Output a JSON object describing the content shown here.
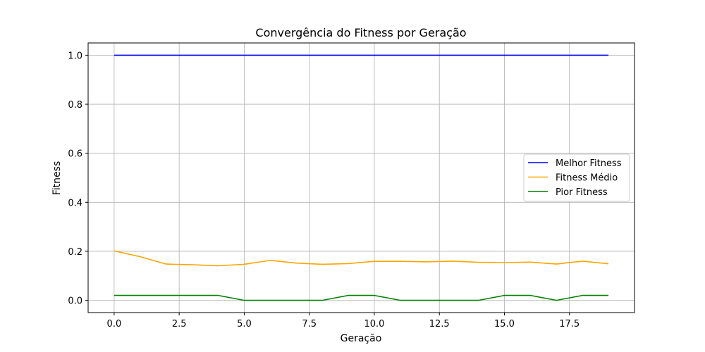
{
  "chart_data": {
    "type": "line",
    "title": "Convergência do Fitness por Geração",
    "xlabel": "Geração",
    "ylabel": "Fitness",
    "xlim": [
      -1,
      20
    ],
    "ylim": [
      -0.05,
      1.05
    ],
    "xticks": [
      0.0,
      2.5,
      5.0,
      7.5,
      10.0,
      12.5,
      15.0,
      17.5
    ],
    "xtick_labels": [
      "0.0",
      "2.5",
      "5.0",
      "7.5",
      "10.0",
      "12.5",
      "15.0",
      "17.5"
    ],
    "yticks": [
      0.0,
      0.2,
      0.4,
      0.6,
      0.8,
      1.0
    ],
    "ytick_labels": [
      "0.0",
      "0.2",
      "0.4",
      "0.6",
      "0.8",
      "1.0"
    ],
    "grid": true,
    "legend_position": "center-right",
    "x": [
      0,
      1,
      2,
      3,
      4,
      5,
      6,
      7,
      8,
      9,
      10,
      11,
      12,
      13,
      14,
      15,
      16,
      17,
      18,
      19
    ],
    "series": [
      {
        "name": "Melhor Fitness",
        "color": "#0000ff",
        "values": [
          1,
          1,
          1,
          1,
          1,
          1,
          1,
          1,
          1,
          1,
          1,
          1,
          1,
          1,
          1,
          1,
          1,
          1,
          1,
          1
        ]
      },
      {
        "name": "Fitness Médio",
        "color": "#ffa500",
        "values": [
          0.202,
          0.178,
          0.148,
          0.145,
          0.141,
          0.147,
          0.163,
          0.152,
          0.147,
          0.15,
          0.159,
          0.159,
          0.157,
          0.16,
          0.155,
          0.154,
          0.156,
          0.148,
          0.16,
          0.149
        ]
      },
      {
        "name": "Pior Fitness",
        "color": "#008000",
        "values": [
          0.02,
          0.02,
          0.02,
          0.02,
          0.02,
          0.0,
          0.0,
          0.0,
          0.0,
          0.02,
          0.02,
          0.0,
          0.0,
          0.0,
          0.0,
          0.02,
          0.02,
          0.0,
          0.02,
          0.02
        ]
      }
    ]
  }
}
